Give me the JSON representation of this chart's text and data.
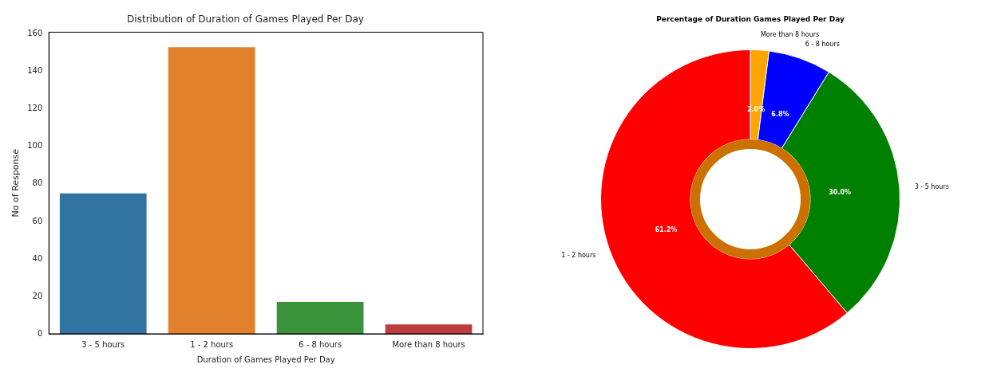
{
  "chart_data": [
    {
      "type": "bar",
      "title": "Distribution of Duration of Games Played Per Day",
      "xlabel": "Duration of Games Played Per Day",
      "ylabel": "No of Response",
      "categories": [
        "3 - 5 hours",
        "1 - 2 hours",
        "6 - 8 hours",
        "More than 8 hours"
      ],
      "values": [
        75,
        153,
        17,
        5
      ],
      "colors": [
        "#3274a1",
        "#e1812c",
        "#3a923a",
        "#c03d3e"
      ],
      "ylim": [
        0,
        161
      ],
      "yticks": [
        0,
        20,
        40,
        60,
        80,
        100,
        120,
        140,
        160
      ],
      "grid": false,
      "legend": false
    },
    {
      "type": "donut",
      "title": "Percentage of Duration Games Played Per Day",
      "categories": [
        "More than 8 hours",
        "6 - 8 hours",
        "3 - 5 hours",
        "1 - 2 hours"
      ],
      "values": [
        2.0,
        6.8,
        30.0,
        61.2
      ],
      "colors": [
        "#ffa500",
        "#0000ff",
        "#008000",
        "#ff0000"
      ],
      "value_labels": [
        "2.0%",
        "6.8%",
        "30.0%",
        "61.2%"
      ],
      "legend": false
    }
  ]
}
